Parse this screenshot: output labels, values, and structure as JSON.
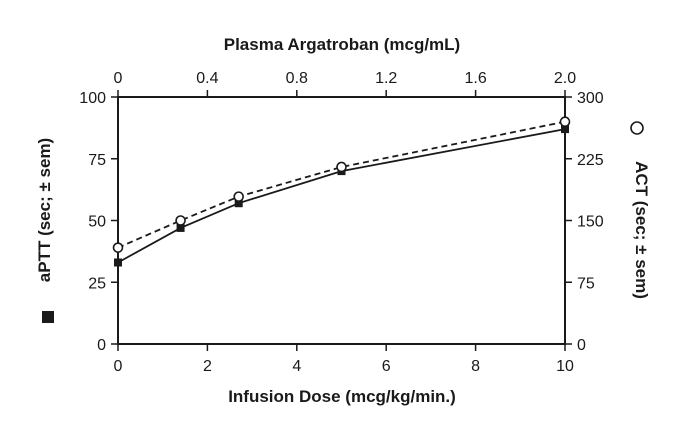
{
  "chart_data": {
    "type": "line",
    "x": [
      0,
      1.4,
      2.7,
      5,
      10
    ],
    "series": [
      {
        "name": "aPTT (sec; ± sem)",
        "axis": "left",
        "marker": "filled-square",
        "dash": "solid",
        "values": [
          33,
          47,
          57,
          70,
          87
        ]
      },
      {
        "name": "ACT (sec; ± sem)",
        "axis": "right",
        "marker": "open-circle",
        "dash": "dashed",
        "values": [
          117,
          150,
          179,
          215,
          270
        ]
      }
    ],
    "xlabel": "Infusion Dose (mcg/kg/min.)",
    "x_ticks": [
      "0",
      "2",
      "4",
      "6",
      "8",
      "10"
    ],
    "xlim": [
      0,
      10
    ],
    "top_xlabel": "Plasma Argatroban (mcg/mL)",
    "top_x_ticks": [
      "0",
      "0.4",
      "0.8",
      "1.2",
      "1.6",
      "2.0"
    ],
    "top_xlim": [
      0,
      2.0
    ],
    "ylabel_left": "aPTT (sec; ± sem)",
    "left_y_ticks": [
      "0",
      "25",
      "50",
      "75",
      "100"
    ],
    "ylim_left": [
      0,
      100
    ],
    "ylabel_right": "ACT (sec; ± sem)",
    "right_y_ticks": [
      "0",
      "75",
      "150",
      "225",
      "300"
    ],
    "ylim_right": [
      0,
      300
    ],
    "grid": false,
    "line_color": "#1a1a1a"
  }
}
